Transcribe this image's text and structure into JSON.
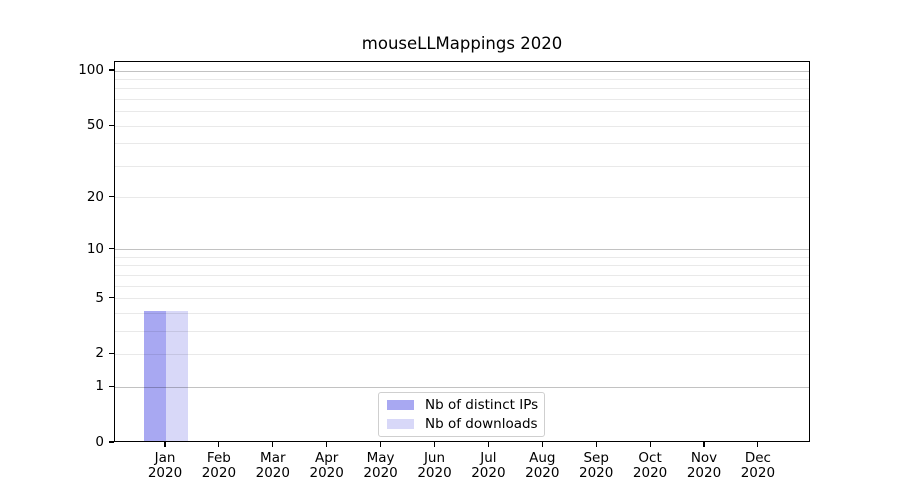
{
  "chart_data": {
    "type": "bar",
    "title": "mouseLLMappings 2020",
    "categories": [
      "Jan",
      "Feb",
      "Mar",
      "Apr",
      "May",
      "Jun",
      "Jul",
      "Aug",
      "Sep",
      "Oct",
      "Nov",
      "Dec"
    ],
    "category_year": "2020",
    "series": [
      {
        "name": "Nb of distinct IPs",
        "color": "#a8a8f2",
        "values": [
          4,
          0,
          0,
          0,
          0,
          0,
          0,
          0,
          0,
          0,
          0,
          0
        ]
      },
      {
        "name": "Nb of downloads",
        "color": "#d8d8f8",
        "values": [
          4,
          0,
          0,
          0,
          0,
          0,
          0,
          0,
          0,
          0,
          0,
          0
        ]
      }
    ],
    "xlabel": "",
    "ylabel": "",
    "yscale": "log1p",
    "ylim": [
      0,
      112
    ],
    "yticks": [
      0,
      1,
      2,
      5,
      10,
      20,
      50,
      100
    ],
    "ytick_labels": [
      "0",
      "1",
      "2",
      "5",
      "10",
      "20",
      "50",
      "100"
    ],
    "major_gridlines": [
      1,
      10,
      100
    ],
    "minor_gridlines": [
      2,
      3,
      4,
      5,
      6,
      7,
      8,
      9,
      20,
      30,
      40,
      50,
      60,
      70,
      80,
      90
    ],
    "grid": "horizontal",
    "legend_position": "lower-center-inside",
    "colors": {
      "axis": "#000000",
      "background": "#ffffff"
    }
  }
}
